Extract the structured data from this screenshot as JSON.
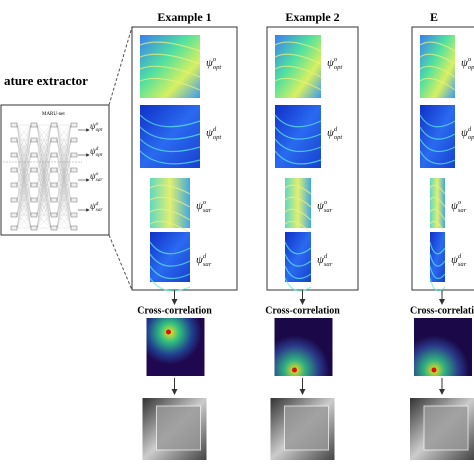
{
  "extractor": {
    "title": "ature extractor",
    "network": "MARU-net",
    "outputs": [
      {
        "symbol": "ψ",
        "sup": "o",
        "sub": "opt"
      },
      {
        "symbol": "ψ",
        "sup": "d",
        "sub": "opt"
      },
      {
        "symbol": "ψ",
        "sup": "o",
        "sub": "sar"
      },
      {
        "symbol": "ψ",
        "sup": "d",
        "sub": "sar"
      }
    ]
  },
  "examples": [
    {
      "title": "Example 1",
      "cross_correlation": "Cross-correlation"
    },
    {
      "title": "Example 2",
      "cross_correlation": "Cross-correlation"
    },
    {
      "title": "E",
      "cross_correlation": "Cross-correlati"
    }
  ]
}
